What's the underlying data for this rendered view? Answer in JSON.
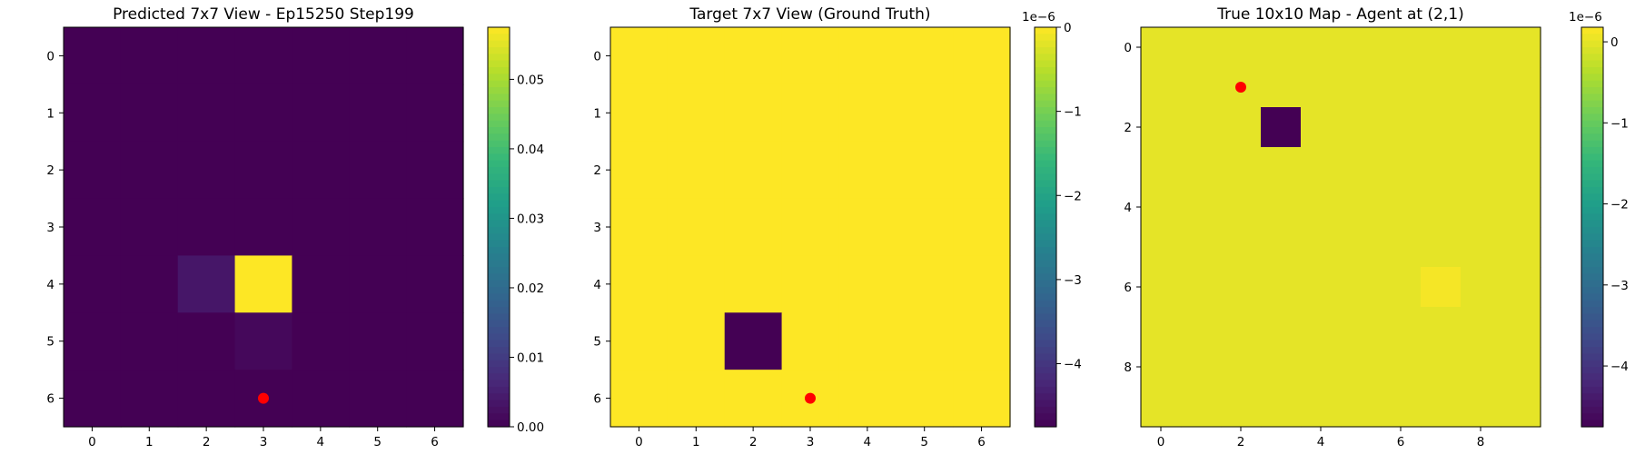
{
  "colormap": "viridis",
  "marker_color": "#ff0000",
  "chart_data": [
    {
      "type": "heatmap",
      "title": "Predicted 7x7 View - Ep15250 Step199",
      "rows": 7,
      "cols": 7,
      "xticks": [
        0,
        1,
        2,
        3,
        4,
        5,
        6
      ],
      "yticks": [
        0,
        1,
        2,
        3,
        4,
        5,
        6
      ],
      "values": [
        [
          0,
          0,
          0,
          0,
          0,
          0,
          0
        ],
        [
          0,
          0,
          0,
          0,
          0,
          0,
          0
        ],
        [
          0,
          0,
          0,
          0,
          0,
          0,
          0
        ],
        [
          0,
          0,
          0,
          0,
          0,
          0,
          0
        ],
        [
          0,
          0,
          0.0035,
          0.0575,
          0,
          0,
          0
        ],
        [
          0,
          0,
          0,
          0.0012,
          0,
          0,
          0
        ],
        [
          0,
          0,
          0,
          0,
          0,
          0,
          0
        ]
      ],
      "vmin": 0,
      "vmax": 0.0575,
      "colorbar": {
        "ticks": [
          0.0,
          0.01,
          0.02,
          0.03,
          0.04,
          0.05
        ],
        "labels": [
          "0.00",
          "0.01",
          "0.02",
          "0.03",
          "0.04",
          "0.05"
        ],
        "exponent": ""
      },
      "marker": {
        "x": 3,
        "y": 6
      }
    },
    {
      "type": "heatmap",
      "title": "Target 7x7 View (Ground Truth)",
      "rows": 7,
      "cols": 7,
      "xticks": [
        0,
        1,
        2,
        3,
        4,
        5,
        6
      ],
      "yticks": [
        0,
        1,
        2,
        3,
        4,
        5,
        6
      ],
      "values": [
        [
          0,
          0,
          0,
          0,
          0,
          0,
          0
        ],
        [
          0,
          0,
          0,
          0,
          0,
          0,
          0
        ],
        [
          0,
          0,
          0,
          0,
          0,
          0,
          0
        ],
        [
          0,
          0,
          0,
          0,
          0,
          0,
          0
        ],
        [
          0,
          0,
          0,
          0,
          0,
          0,
          0
        ],
        [
          0,
          0,
          -4.75,
          0,
          0,
          0,
          0
        ],
        [
          0,
          0,
          0,
          0,
          0,
          0,
          0
        ]
      ],
      "vmin": -4.75,
      "vmax": 0,
      "colorbar": {
        "ticks": [
          0,
          -1,
          -2,
          -3,
          -4
        ],
        "labels": [
          "0",
          "−1",
          "−2",
          "−3",
          "−4"
        ],
        "exponent": "1e−6"
      },
      "marker": {
        "x": 3,
        "y": 6
      }
    },
    {
      "type": "heatmap",
      "title": "True 10x10 Map - Agent at (2,1)",
      "rows": 10,
      "cols": 10,
      "xticks": [
        0,
        2,
        4,
        6,
        8
      ],
      "yticks": [
        0,
        2,
        4,
        6,
        8
      ],
      "values": [
        [
          0,
          0,
          0,
          0,
          0,
          0,
          0,
          0,
          0,
          0
        ],
        [
          0,
          0,
          0,
          0,
          0,
          0,
          0,
          0,
          0,
          0
        ],
        [
          0,
          0,
          0,
          -4.75,
          0,
          0,
          0,
          0,
          0,
          0
        ],
        [
          0,
          0,
          0,
          0,
          0,
          0,
          0,
          0,
          0,
          0
        ],
        [
          0,
          0,
          0,
          0,
          0,
          0,
          0,
          0,
          0,
          0
        ],
        [
          0,
          0,
          0,
          0,
          0,
          0,
          0,
          0,
          0,
          0
        ],
        [
          0,
          0,
          0,
          0,
          0,
          0,
          0,
          0.12,
          0,
          0
        ],
        [
          0,
          0,
          0,
          0,
          0,
          0,
          0,
          0,
          0,
          0
        ],
        [
          0,
          0,
          0,
          0,
          0,
          0,
          0,
          0,
          0,
          0
        ],
        [
          0,
          0,
          0,
          0,
          0,
          0,
          0,
          0,
          0,
          0
        ]
      ],
      "vmin": -4.75,
      "vmax": 0.18,
      "colorbar": {
        "ticks": [
          0,
          -1,
          -2,
          -3,
          -4
        ],
        "labels": [
          "0",
          "−1",
          "−2",
          "−3",
          "−4"
        ],
        "exponent": "1e−6"
      },
      "marker": {
        "x": 2,
        "y": 1
      }
    }
  ]
}
